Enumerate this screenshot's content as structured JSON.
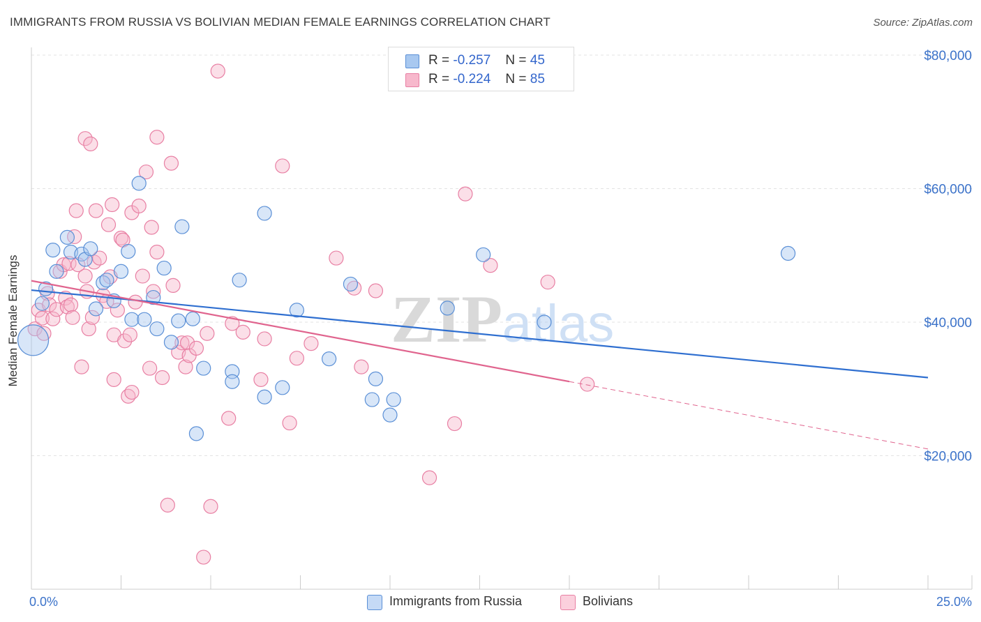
{
  "header": {
    "title": "IMMIGRANTS FROM RUSSIA VS BOLIVIAN MEDIAN FEMALE EARNINGS CORRELATION CHART",
    "source": "Source: ZipAtlas.com"
  },
  "watermark": {
    "zip": "ZIP",
    "atlas": "atlas"
  },
  "stats": [
    {
      "series": "Immigrants from Russia",
      "r_label": "R =",
      "r_value": "-0.257",
      "n_label": "N =",
      "n_value": "45"
    },
    {
      "series": "Bolivians",
      "r_label": "R =",
      "r_value": "-0.224",
      "n_label": "N =",
      "n_value": "85"
    }
  ],
  "colors": {
    "russia_fill": "#a8c8f0",
    "russia_stroke": "#5a8fd6",
    "russia_line": "#2f6fd0",
    "bolivia_fill": "#f7b8cc",
    "bolivia_stroke": "#e87fa3",
    "bolivia_line": "#e0648e",
    "tick_label": "#3b72c9",
    "grid": "#e3e3e3"
  },
  "chart_data": {
    "type": "scatter",
    "title": "IMMIGRANTS FROM RUSSIA VS BOLIVIAN MEDIAN FEMALE EARNINGS CORRELATION CHART",
    "xlabel": "",
    "ylabel": "Median Female Earnings",
    "xlim": [
      0,
      25
    ],
    "ylim": [
      0,
      80000
    ],
    "x_tick_labels": [
      "0.0%",
      "25.0%"
    ],
    "y_ticks": [
      20000,
      40000,
      60000,
      80000
    ],
    "y_tick_labels": [
      "$20,000",
      "$40,000",
      "$60,000",
      "$80,000"
    ],
    "grid": true,
    "legend": [
      "Immigrants from Russia",
      "Bolivians"
    ],
    "series": [
      {
        "name": "Immigrants from Russia",
        "trend": {
          "x0": 0,
          "y0": 44800,
          "x1": 25,
          "y1": 31700,
          "dashed_from": null
        },
        "points": [
          [
            0.05,
            37300,
            22
          ],
          [
            0.3,
            42800,
            10
          ],
          [
            0.4,
            45000,
            10
          ],
          [
            0.7,
            47600,
            10
          ],
          [
            0.6,
            50800,
            10
          ],
          [
            1.0,
            52700,
            10
          ],
          [
            1.1,
            50500,
            10
          ],
          [
            1.4,
            50200,
            10
          ],
          [
            1.5,
            49400,
            10
          ],
          [
            1.65,
            51000,
            10
          ],
          [
            1.8,
            42000,
            10
          ],
          [
            2.0,
            45900,
            10
          ],
          [
            2.1,
            46300,
            10
          ],
          [
            2.3,
            43200,
            10
          ],
          [
            2.5,
            47600,
            10
          ],
          [
            2.7,
            50600,
            10
          ],
          [
            2.8,
            40400,
            10
          ],
          [
            3.0,
            60800,
            10
          ],
          [
            3.15,
            40400,
            10
          ],
          [
            3.4,
            43700,
            10
          ],
          [
            3.5,
            39000,
            10
          ],
          [
            3.7,
            48100,
            10
          ],
          [
            3.9,
            37000,
            10
          ],
          [
            4.1,
            40200,
            10
          ],
          [
            4.2,
            54300,
            10
          ],
          [
            4.5,
            40500,
            10
          ],
          [
            4.6,
            23300,
            10
          ],
          [
            4.8,
            33100,
            10
          ],
          [
            5.6,
            32600,
            10
          ],
          [
            5.6,
            31100,
            10
          ],
          [
            5.8,
            46300,
            10
          ],
          [
            6.5,
            56300,
            10
          ],
          [
            6.5,
            28800,
            10
          ],
          [
            7.0,
            30200,
            10
          ],
          [
            7.4,
            41800,
            10
          ],
          [
            8.3,
            34500,
            10
          ],
          [
            8.9,
            45700,
            10
          ],
          [
            9.5,
            28400,
            10
          ],
          [
            9.6,
            31500,
            10
          ],
          [
            10.0,
            26100,
            10
          ],
          [
            10.1,
            28400,
            10
          ],
          [
            11.6,
            42100,
            10
          ],
          [
            12.6,
            50100,
            10
          ],
          [
            14.3,
            40000,
            10
          ],
          [
            21.1,
            50300,
            10
          ]
        ]
      },
      {
        "name": "Bolivians",
        "trend": {
          "x0": 0,
          "y0": 46200,
          "x1": 15,
          "y1": 31100,
          "dashed_to": 25,
          "dashed_y1": 21000
        },
        "points": [
          [
            0.1,
            39000,
            10
          ],
          [
            0.2,
            41800,
            10
          ],
          [
            0.3,
            40600,
            10
          ],
          [
            0.35,
            38300,
            10
          ],
          [
            0.45,
            44300,
            10
          ],
          [
            0.5,
            42600,
            10
          ],
          [
            0.6,
            40500,
            10
          ],
          [
            0.7,
            41900,
            10
          ],
          [
            0.8,
            47600,
            10
          ],
          [
            0.9,
            48600,
            10
          ],
          [
            0.95,
            43600,
            10
          ],
          [
            1.0,
            42300,
            10
          ],
          [
            1.05,
            48800,
            10
          ],
          [
            1.1,
            42600,
            10
          ],
          [
            1.15,
            40700,
            10
          ],
          [
            1.2,
            52800,
            10
          ],
          [
            1.25,
            56700,
            10
          ],
          [
            1.3,
            48600,
            10
          ],
          [
            1.4,
            33300,
            10
          ],
          [
            1.5,
            67500,
            10
          ],
          [
            1.5,
            46900,
            10
          ],
          [
            1.55,
            44600,
            10
          ],
          [
            1.6,
            39000,
            10
          ],
          [
            1.65,
            66700,
            10
          ],
          [
            1.7,
            40700,
            10
          ],
          [
            1.75,
            49000,
            10
          ],
          [
            1.8,
            56700,
            10
          ],
          [
            1.9,
            49600,
            10
          ],
          [
            2.0,
            44000,
            10
          ],
          [
            2.1,
            43100,
            10
          ],
          [
            2.15,
            54600,
            10
          ],
          [
            2.2,
            46800,
            10
          ],
          [
            2.25,
            57600,
            10
          ],
          [
            2.3,
            38100,
            10
          ],
          [
            2.3,
            31400,
            10
          ],
          [
            2.4,
            41800,
            10
          ],
          [
            2.5,
            52600,
            10
          ],
          [
            2.55,
            52300,
            10
          ],
          [
            2.6,
            37200,
            10
          ],
          [
            2.7,
            28900,
            10
          ],
          [
            2.75,
            38100,
            10
          ],
          [
            2.8,
            29500,
            10
          ],
          [
            2.8,
            56400,
            10
          ],
          [
            2.9,
            43000,
            10
          ],
          [
            3.0,
            57400,
            10
          ],
          [
            3.1,
            46900,
            10
          ],
          [
            3.2,
            62500,
            10
          ],
          [
            3.3,
            33100,
            10
          ],
          [
            3.35,
            54200,
            10
          ],
          [
            3.4,
            44600,
            10
          ],
          [
            3.5,
            50500,
            10
          ],
          [
            3.5,
            67700,
            10
          ],
          [
            3.65,
            31700,
            10
          ],
          [
            3.8,
            12600,
            10
          ],
          [
            3.9,
            63800,
            10
          ],
          [
            3.95,
            45500,
            10
          ],
          [
            4.1,
            35500,
            10
          ],
          [
            4.2,
            36900,
            10
          ],
          [
            4.3,
            33300,
            10
          ],
          [
            4.35,
            36900,
            10
          ],
          [
            4.4,
            35000,
            10
          ],
          [
            4.6,
            36100,
            10
          ],
          [
            4.8,
            4800,
            10
          ],
          [
            4.9,
            38300,
            10
          ],
          [
            5.0,
            12400,
            10
          ],
          [
            5.2,
            77600,
            10
          ],
          [
            5.5,
            25600,
            10
          ],
          [
            5.6,
            39800,
            10
          ],
          [
            5.9,
            38500,
            10
          ],
          [
            6.4,
            31400,
            10
          ],
          [
            6.5,
            37500,
            10
          ],
          [
            7.0,
            63400,
            10
          ],
          [
            7.2,
            24900,
            10
          ],
          [
            7.4,
            34600,
            10
          ],
          [
            7.8,
            36800,
            10
          ],
          [
            8.5,
            49600,
            10
          ],
          [
            9.0,
            45100,
            10
          ],
          [
            9.2,
            33300,
            10
          ],
          [
            9.6,
            44700,
            10
          ],
          [
            11.1,
            16700,
            10
          ],
          [
            11.8,
            24800,
            10
          ],
          [
            12.1,
            59200,
            10
          ],
          [
            12.8,
            48500,
            10
          ],
          [
            14.4,
            46000,
            10
          ],
          [
            15.5,
            30700,
            10
          ]
        ]
      }
    ]
  }
}
